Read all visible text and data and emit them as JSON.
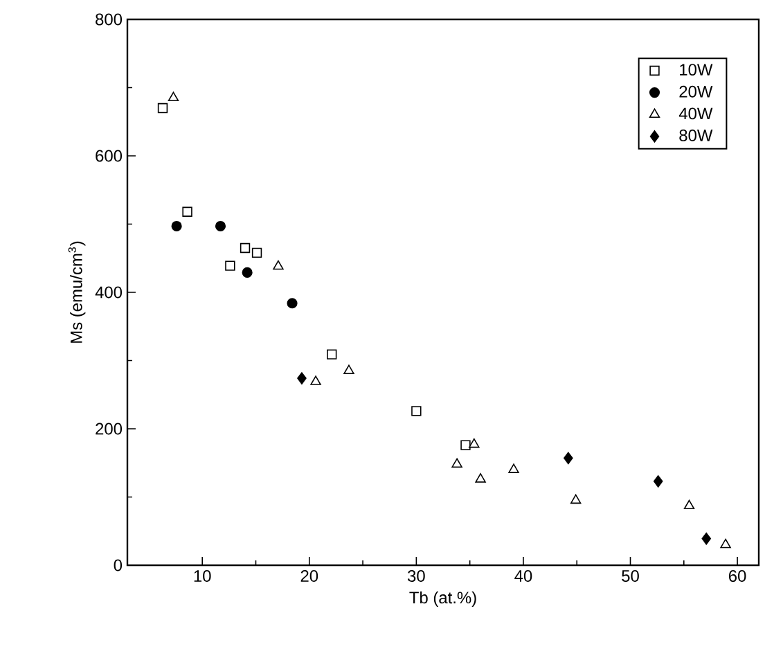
{
  "chart_data": {
    "type": "scatter",
    "xlabel": "Tb (at.%)",
    "ylabel": "Ms (emu/cm$^{3}$)",
    "xlim": [
      3,
      62
    ],
    "ylim": [
      0,
      800
    ],
    "xticks": [
      10,
      20,
      30,
      40,
      50,
      60
    ],
    "yticks": [
      0,
      200,
      400,
      600,
      800
    ],
    "legend": "top right",
    "grid": false,
    "series": [
      {
        "name": "10W",
        "color": "#000000",
        "marker": "square",
        "x": [
          6.3,
          8.6,
          12.6,
          14.0,
          15.1,
          22.1,
          30.0,
          34.6
        ],
        "values": [
          670,
          518,
          439,
          465,
          458,
          309,
          226,
          176
        ]
      },
      {
        "name": "20W",
        "color": "#000000",
        "marker": "circle",
        "x": [
          7.6,
          11.7,
          14.2,
          18.4
        ],
        "values": [
          497,
          497,
          429,
          384
        ]
      },
      {
        "name": "40W",
        "color": "#000000",
        "marker": "triangle",
        "x": [
          7.3,
          17.1,
          20.6,
          23.7,
          33.8,
          35.4,
          36.0,
          39.1,
          44.9,
          55.5,
          58.9
        ],
        "values": [
          685,
          438,
          269,
          285,
          148,
          177,
          126,
          140,
          95,
          87,
          30
        ]
      },
      {
        "name": "80W",
        "color": "#000000",
        "marker": "diamond",
        "x": [
          19.3,
          44.2,
          52.6,
          57.1
        ],
        "values": [
          274,
          157,
          123,
          39
        ]
      }
    ]
  }
}
